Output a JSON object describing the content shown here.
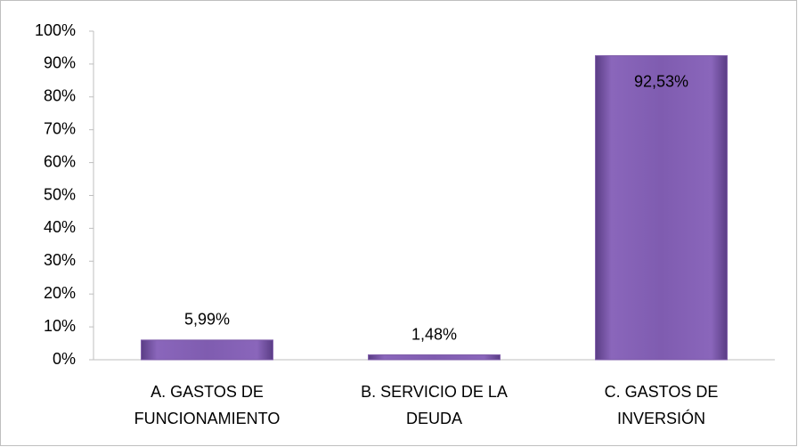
{
  "chart_data": {
    "type": "bar",
    "categories": [
      "A. GASTOS DE FUNCIONAMIENTO",
      "B. SERVICIO DE LA DEUDA",
      "C. GASTOS DE INVERSIÓN"
    ],
    "values": [
      5.99,
      1.48,
      92.53
    ],
    "value_labels": [
      "5,99%",
      "1,48%",
      "92,53%"
    ],
    "color": "#7d5aa8",
    "ylim": [
      0,
      100
    ],
    "yticks": [
      {
        "value": 0,
        "label": "0%"
      },
      {
        "value": 10,
        "label": "10%"
      },
      {
        "value": 20,
        "label": "20%"
      },
      {
        "value": 30,
        "label": "30%"
      },
      {
        "value": 40,
        "label": "40%"
      },
      {
        "value": 50,
        "label": "50%"
      },
      {
        "value": 60,
        "label": "60%"
      },
      {
        "value": 70,
        "label": "70%"
      },
      {
        "value": 80,
        "label": "80%"
      },
      {
        "value": 90,
        "label": "90%"
      },
      {
        "value": 100,
        "label": "100%"
      }
    ],
    "grid": false
  }
}
